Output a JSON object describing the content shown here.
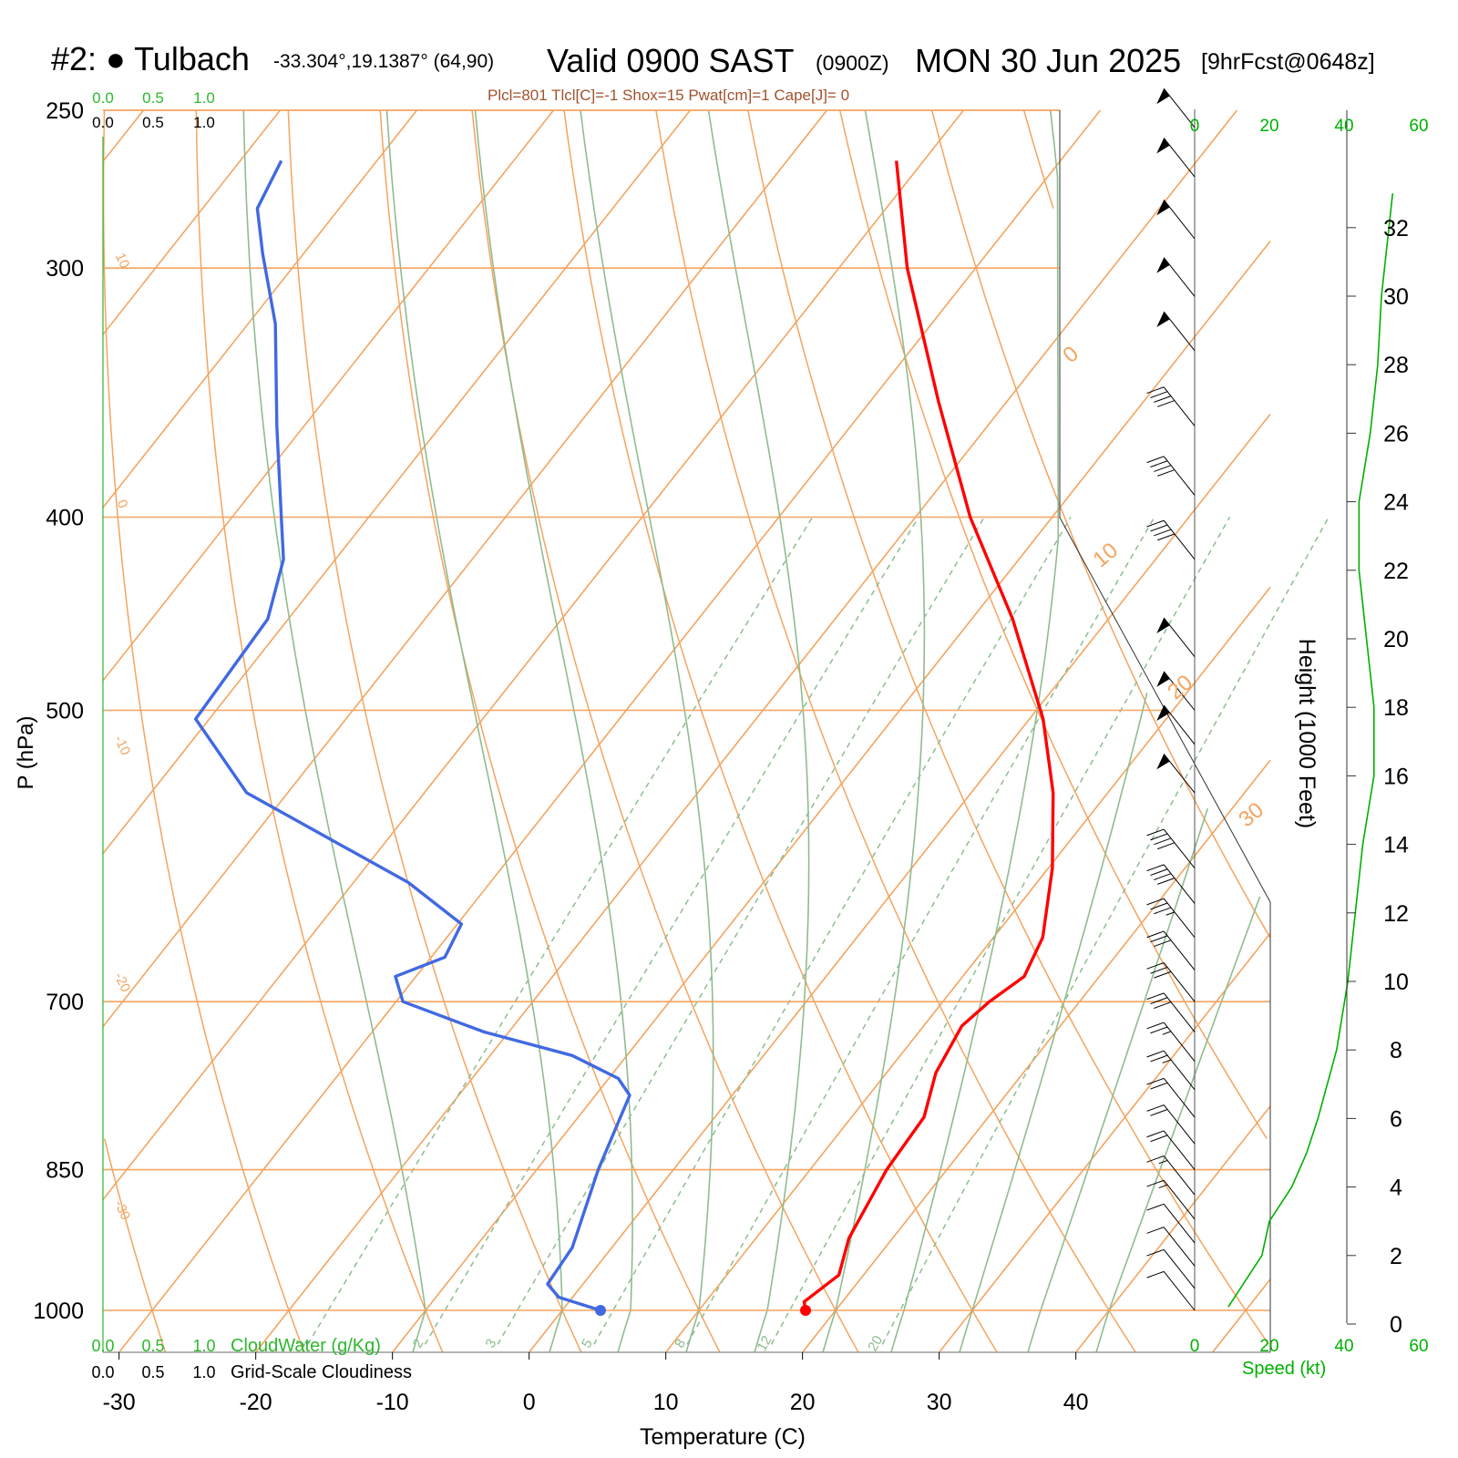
{
  "header": {
    "station": "#2: ● Tulbach",
    "coords": "-33.304°,19.1387° (64,90)",
    "valid": "Valid 0900 SAST",
    "zulu": "(0900Z)",
    "date": "MON 30 Jun 2025",
    "forecast": "[9hrFcst@0648z]",
    "indices": "Plcl=801 Tlcl[C]=-1 Shox=15 Pwat[cm]=1 Cape[J]= 0"
  },
  "colors": {
    "temperature": "#ff0000",
    "dewpoint": "#4169e1",
    "isotherm": "#f4a460",
    "dry_adiabat": "#8fbc8f",
    "mixing_ratio": "#8fbc8f",
    "wind_speed": "#00b000",
    "indices_text": "#a0522d"
  },
  "chart_data": {
    "type": "skew-t",
    "xlabel": "Temperature (C)",
    "ylabel": "P (hPa)",
    "x_ticks": [
      "-30",
      "-20",
      "-10",
      "0",
      "10",
      "20",
      "30",
      "40"
    ],
    "pressure_levels": [
      "250",
      "300",
      "400",
      "500",
      "700",
      "850",
      "1000"
    ],
    "isotherm_labels": [
      "10",
      "0",
      "-10",
      "-20",
      "-30",
      "0",
      "10",
      "20",
      "30"
    ],
    "mixing_ratio_labels": [
      "1",
      "2",
      "3",
      "5",
      "8",
      "12",
      "20"
    ],
    "temperature_profile": [
      {
        "p": 1000,
        "t": 17.8
      },
      {
        "p": 990,
        "t": 17.2
      },
      {
        "p": 960,
        "t": 18.2
      },
      {
        "p": 920,
        "t": 16.8
      },
      {
        "p": 850,
        "t": 15.6
      },
      {
        "p": 800,
        "t": 15.3
      },
      {
        "p": 760,
        "t": 13.6
      },
      {
        "p": 720,
        "t": 12.8
      },
      {
        "p": 700,
        "t": 13.4
      },
      {
        "p": 680,
        "t": 14.5
      },
      {
        "p": 650,
        "t": 13.6
      },
      {
        "p": 600,
        "t": 10.3
      },
      {
        "p": 550,
        "t": 6.0
      },
      {
        "p": 505,
        "t": 1.0
      },
      {
        "p": 450,
        "t": -7.0
      },
      {
        "p": 400,
        "t": -16.0
      },
      {
        "p": 350,
        "t": -25.0
      },
      {
        "p": 300,
        "t": -35.0
      },
      {
        "p": 265,
        "t": -42.0
      }
    ],
    "dewpoint_profile": [
      {
        "p": 1000,
        "t": 2.8
      },
      {
        "p": 985,
        "t": -1.0
      },
      {
        "p": 970,
        "t": -2.6
      },
      {
        "p": 930,
        "t": -2.9
      },
      {
        "p": 850,
        "t": -5.5
      },
      {
        "p": 780,
        "t": -7.5
      },
      {
        "p": 765,
        "t": -9.3
      },
      {
        "p": 745,
        "t": -14.0
      },
      {
        "p": 725,
        "t": -21.8
      },
      {
        "p": 700,
        "t": -29.5
      },
      {
        "p": 680,
        "t": -31.5
      },
      {
        "p": 665,
        "t": -29.0
      },
      {
        "p": 640,
        "t": -29.7
      },
      {
        "p": 610,
        "t": -36.0
      },
      {
        "p": 550,
        "t": -53.0
      },
      {
        "p": 505,
        "t": -61.0
      },
      {
        "p": 450,
        "t": -61.5
      },
      {
        "p": 420,
        "t": -63.8
      },
      {
        "p": 400,
        "t": -66.4
      },
      {
        "p": 360,
        "t": -72.0
      },
      {
        "p": 320,
        "t": -78.0
      },
      {
        "p": 295,
        "t": -83.0
      },
      {
        "p": 280,
        "t": -86.0
      },
      {
        "p": 265,
        "t": -87.0
      }
    ],
    "surface_point": {
      "p": 1000,
      "t": 17.8,
      "td": 2.8
    },
    "wind_barbs_kt": [
      {
        "p": 1000,
        "speed": 10
      },
      {
        "p": 975,
        "speed": 12
      },
      {
        "p": 950,
        "speed": 12
      },
      {
        "p": 925,
        "speed": 14
      },
      {
        "p": 900,
        "speed": 16
      },
      {
        "p": 875,
        "speed": 18
      },
      {
        "p": 850,
        "speed": 20
      },
      {
        "p": 825,
        "speed": 22
      },
      {
        "p": 800,
        "speed": 24
      },
      {
        "p": 775,
        "speed": 26
      },
      {
        "p": 750,
        "speed": 28
      },
      {
        "p": 725,
        "speed": 30
      },
      {
        "p": 700,
        "speed": 32
      },
      {
        "p": 675,
        "speed": 34
      },
      {
        "p": 650,
        "speed": 38
      },
      {
        "p": 625,
        "speed": 40
      },
      {
        "p": 600,
        "speed": 42
      },
      {
        "p": 550,
        "speed": 50
      },
      {
        "p": 520,
        "speed": 50
      },
      {
        "p": 500,
        "speed": 50
      },
      {
        "p": 470,
        "speed": 50
      },
      {
        "p": 420,
        "speed": 40
      },
      {
        "p": 390,
        "speed": 40
      },
      {
        "p": 360,
        "speed": 40
      },
      {
        "p": 330,
        "speed": 50
      },
      {
        "p": 310,
        "speed": 50
      },
      {
        "p": 290,
        "speed": 50
      },
      {
        "p": 270,
        "speed": 50
      },
      {
        "p": 255,
        "speed": 50
      }
    ],
    "wind_speed_profile": {
      "xlabel": "Speed (kt)",
      "x_ticks": [
        "0",
        "20",
        "40",
        "60"
      ],
      "heights_kft": [
        0.5,
        1,
        2,
        3,
        4,
        5,
        6,
        8,
        10,
        12,
        14,
        16,
        18,
        20,
        22,
        24,
        26,
        28,
        30,
        32,
        33
      ],
      "speeds_kt": [
        9,
        12,
        18,
        20,
        26,
        30,
        33,
        38,
        41,
        43,
        45,
        48,
        48,
        46,
        44,
        44,
        47,
        49,
        50,
        52,
        53
      ]
    },
    "height_axis": {
      "label": "Height (1000 Feet)",
      "ticks": [
        "0",
        "2",
        "4",
        "6",
        "8",
        "10",
        "12",
        "14",
        "16",
        "18",
        "20",
        "22",
        "24",
        "26",
        "28",
        "30",
        "32"
      ]
    },
    "cloud_axis": {
      "cloudwater_label": "CloudWater (g/Kg)",
      "cloudiness_label": "Grid-Scale Cloudiness",
      "ticks": [
        "0.0",
        "0.5",
        "1.0"
      ]
    }
  }
}
